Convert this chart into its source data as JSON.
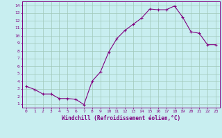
{
  "x": [
    0,
    1,
    2,
    3,
    4,
    5,
    6,
    7,
    8,
    9,
    10,
    11,
    12,
    13,
    14,
    15,
    16,
    17,
    18,
    19,
    20,
    21,
    22,
    23
  ],
  "y": [
    3.3,
    2.9,
    2.3,
    2.3,
    1.7,
    1.7,
    1.6,
    0.9,
    4.0,
    5.2,
    7.8,
    9.6,
    10.7,
    11.5,
    12.3,
    13.5,
    13.4,
    13.4,
    13.9,
    12.4,
    10.5,
    10.3,
    8.8,
    8.8
  ],
  "line_color": "#800080",
  "marker": "+",
  "marker_size": 3,
  "marker_linewidth": 0.8,
  "line_width": 0.8,
  "bg_color": "#c8eef0",
  "grid_color": "#a0c8b8",
  "xlabel": "Windchill (Refroidissement éolien,°C)",
  "xlim": [
    -0.5,
    23.5
  ],
  "ylim": [
    0.5,
    14.5
  ],
  "xticks": [
    0,
    1,
    2,
    3,
    4,
    5,
    6,
    7,
    8,
    9,
    10,
    11,
    12,
    13,
    14,
    15,
    16,
    17,
    18,
    19,
    20,
    21,
    22,
    23
  ],
  "yticks": [
    1,
    2,
    3,
    4,
    5,
    6,
    7,
    8,
    9,
    10,
    11,
    12,
    13,
    14
  ],
  "tick_color": "#800080",
  "label_color": "#800080",
  "axis_color": "#800080",
  "tick_fontsize": 4.5,
  "xlabel_fontsize": 5.5
}
